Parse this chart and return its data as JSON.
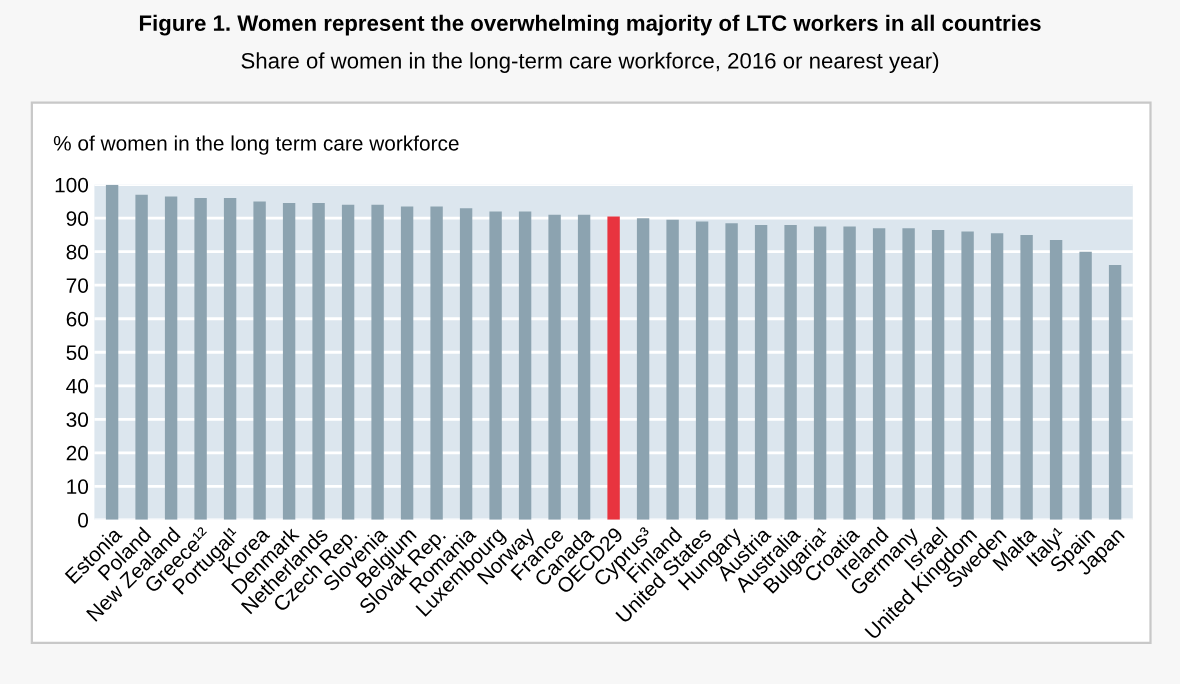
{
  "chart_data": {
    "type": "bar",
    "title": "Figure 1. Women represent the overwhelming majority of LTC workers in all countries",
    "subtitle": "Share of women in the long-term care workforce, 2016 or nearest year)",
    "ylabel": "% of women in the long term care workforce",
    "categories": [
      "Estonia",
      "Poland",
      "New Zealand",
      "Greece¹²",
      "Portugal¹",
      "Korea",
      "Denmark",
      "Netherlands",
      "Czech Rep.",
      "Slovenia",
      "Belgium",
      "Slovak Rep.",
      "Romania",
      "Luxembourg",
      "Norway",
      "France",
      "Canada",
      "OECD29",
      "Cyprus³",
      "Finland",
      "United States",
      "Hungary",
      "Austria",
      "Australia",
      "Bulgaria¹",
      "Croatia",
      "Ireland",
      "Germany",
      "Israel",
      "United Kingdom",
      "Sweden",
      "Malta",
      "Italy¹",
      "Spain",
      "Japan"
    ],
    "values": [
      100,
      97,
      96.5,
      96,
      96,
      95,
      94.5,
      94.5,
      94,
      94,
      93.5,
      93.5,
      93,
      92,
      92,
      91,
      91,
      90.5,
      90,
      89.5,
      89,
      88.5,
      88,
      88,
      87.5,
      87.5,
      87,
      87,
      86.5,
      86,
      85.5,
      85,
      83.5,
      80,
      76
    ],
    "colors": [
      "#8ca3b0",
      "#8ca3b0",
      "#8ca3b0",
      "#8ca3b0",
      "#8ca3b0",
      "#8ca3b0",
      "#8ca3b0",
      "#8ca3b0",
      "#8ca3b0",
      "#8ca3b0",
      "#8ca3b0",
      "#8ca3b0",
      "#8ca3b0",
      "#8ca3b0",
      "#8ca3b0",
      "#8ca3b0",
      "#8ca3b0",
      "#e8343f",
      "#8ca3b0",
      "#8ca3b0",
      "#8ca3b0",
      "#8ca3b0",
      "#8ca3b0",
      "#8ca3b0",
      "#8ca3b0",
      "#8ca3b0",
      "#8ca3b0",
      "#8ca3b0",
      "#8ca3b0",
      "#8ca3b0",
      "#8ca3b0",
      "#8ca3b0",
      "#8ca3b0",
      "#8ca3b0",
      "#8ca3b0"
    ],
    "ylim": [
      0,
      100
    ],
    "yticks": [
      0,
      10,
      20,
      30,
      40,
      50,
      60,
      70,
      80,
      90,
      100
    ],
    "grid": "y",
    "legend": false
  }
}
